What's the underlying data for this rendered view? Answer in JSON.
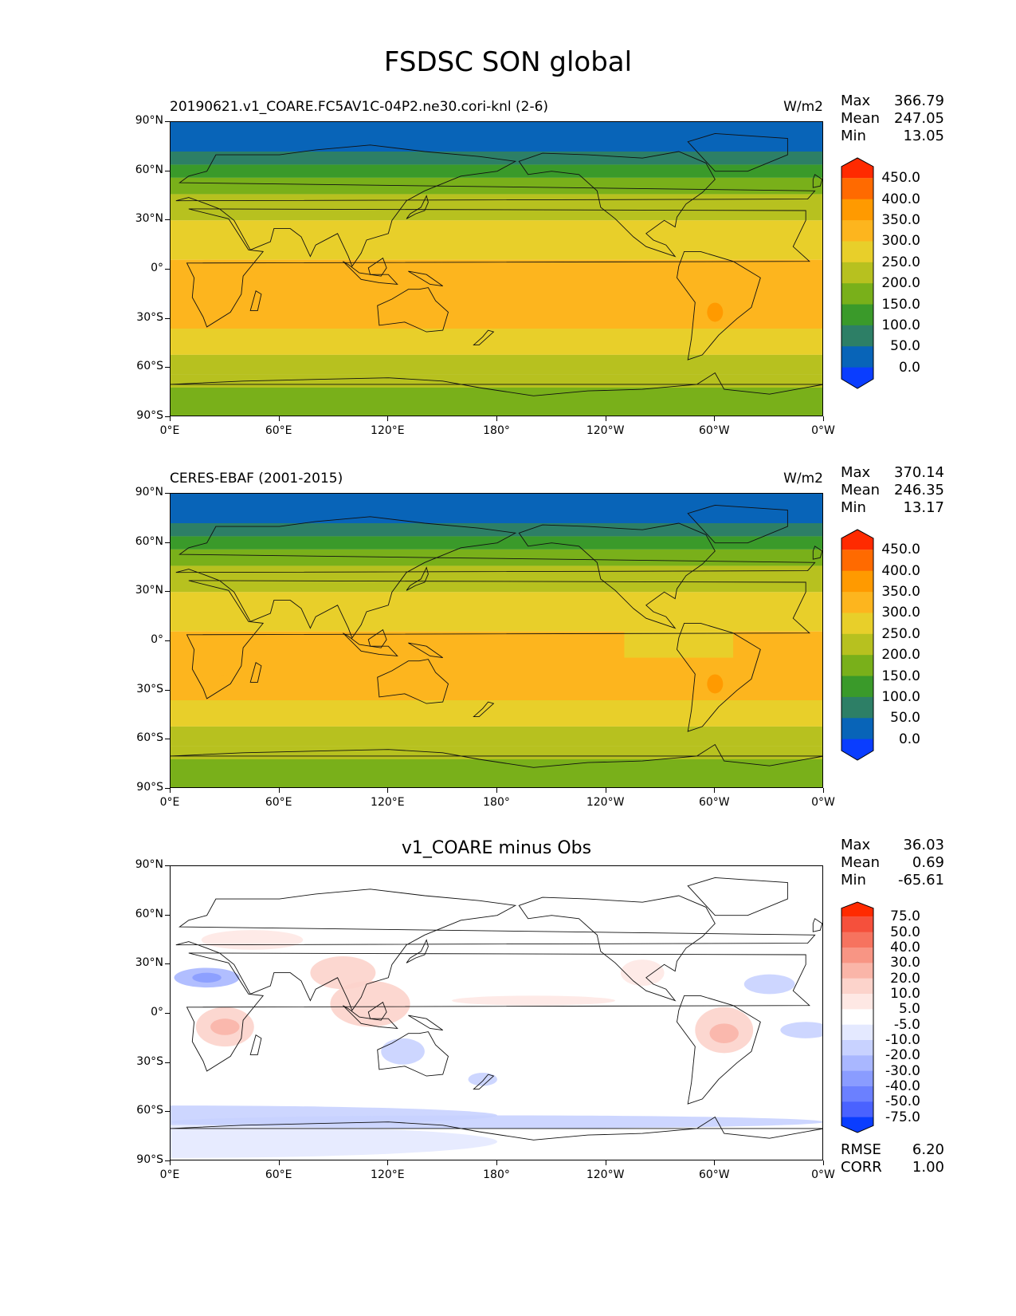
{
  "suptitle": "FSDSC SON global",
  "lat_labels": [
    "90°N",
    "60°N",
    "30°N",
    "0°",
    "30°S",
    "60°S",
    "90°S"
  ],
  "lon_labels": [
    "0°E",
    "60°E",
    "120°E",
    "180°",
    "120°W",
    "60°W",
    "0°W"
  ],
  "panels": [
    {
      "title_left": "20190621.v1_COARE.FC5AV1C-04P2.ne30.cori-knl (2-6)",
      "title_right": "W/m2",
      "title_center": "",
      "stats": [
        {
          "k": "Max",
          "v": "366.79"
        },
        {
          "k": "Mean",
          "v": "247.05"
        },
        {
          "k": "Min",
          "v": "13.05"
        }
      ],
      "colorbar_labels": [
        "450.0",
        "400.0",
        "350.0",
        "300.0",
        "250.0",
        "200.0",
        "150.0",
        "100.0",
        "50.0",
        "0.0"
      ],
      "colorbar_colors": [
        "#ff2a00",
        "#ff6a00",
        "#ff9a00",
        "#fdb51e",
        "#e8cf2a",
        "#b7c11f",
        "#79b01a",
        "#3a9a2a",
        "#2d7f66",
        "#0864b8",
        "#0a3dff"
      ]
    },
    {
      "title_left": "CERES-EBAF (2001-2015)",
      "title_right": "W/m2",
      "title_center": "",
      "stats": [
        {
          "k": "Max",
          "v": "370.14"
        },
        {
          "k": "Mean",
          "v": "246.35"
        },
        {
          "k": "Min",
          "v": "13.17"
        }
      ],
      "colorbar_labels": [
        "450.0",
        "400.0",
        "350.0",
        "300.0",
        "250.0",
        "200.0",
        "150.0",
        "100.0",
        "50.0",
        "0.0"
      ],
      "colorbar_colors": [
        "#ff2a00",
        "#ff6a00",
        "#ff9a00",
        "#fdb51e",
        "#e8cf2a",
        "#b7c11f",
        "#79b01a",
        "#3a9a2a",
        "#2d7f66",
        "#0864b8",
        "#0a3dff"
      ]
    },
    {
      "title_left": "",
      "title_right": "",
      "title_center": "v1_COARE minus Obs",
      "stats": [
        {
          "k": "Max",
          "v": "36.03"
        },
        {
          "k": "Mean",
          "v": "0.69"
        },
        {
          "k": "Min",
          "v": "-65.61"
        }
      ],
      "colorbar_labels": [
        "75.0",
        "50.0",
        "40.0",
        "30.0",
        "20.0",
        "10.0",
        "5.0",
        "-5.0",
        "-10.0",
        "-20.0",
        "-30.0",
        "-40.0",
        "-50.0",
        "-75.0"
      ],
      "colorbar_colors": [
        "#ff2a00",
        "#f5503c",
        "#f6735f",
        "#f89584",
        "#fab5a8",
        "#fcd3cb",
        "#fee8e4",
        "#ffffff",
        "#e4e9ff",
        "#c8d2ff",
        "#a9b7ff",
        "#8a9cff",
        "#6b80ff",
        "#4a62ff",
        "#0a3dff"
      ],
      "bottom_stats": [
        {
          "k": "RMSE",
          "v": "6.20"
        },
        {
          "k": "CORR",
          "v": "1.00"
        }
      ]
    }
  ],
  "legend_unit": "W/m2"
}
